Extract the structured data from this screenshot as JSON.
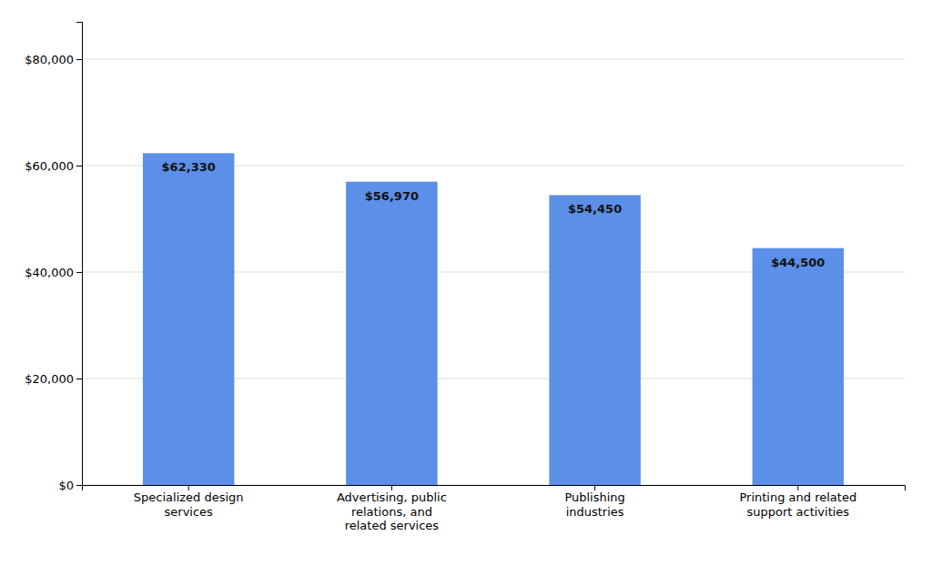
{
  "chart_data": {
    "type": "bar",
    "categories": [
      "Specialized design\nservices",
      "Advertising, public\nrelations, and\nrelated services",
      "Publishing\nindustries",
      "Printing and related\nsupport activities"
    ],
    "values": [
      62330,
      56970,
      54450,
      44500
    ],
    "value_labels": [
      "$62,330",
      "$56,970",
      "$54,450",
      "$44,500"
    ],
    "color": "#5B8FE8",
    "ylim": [
      0,
      87000
    ],
    "yticks": [
      {
        "value": 0,
        "label": "$0"
      },
      {
        "value": 20000,
        "label": "$20,000"
      },
      {
        "value": 40000,
        "label": "$40,000"
      },
      {
        "value": 60000,
        "label": "$60,000"
      },
      {
        "value": 80000,
        "label": "$80,000"
      }
    ],
    "grid": true,
    "data_labels": true
  }
}
